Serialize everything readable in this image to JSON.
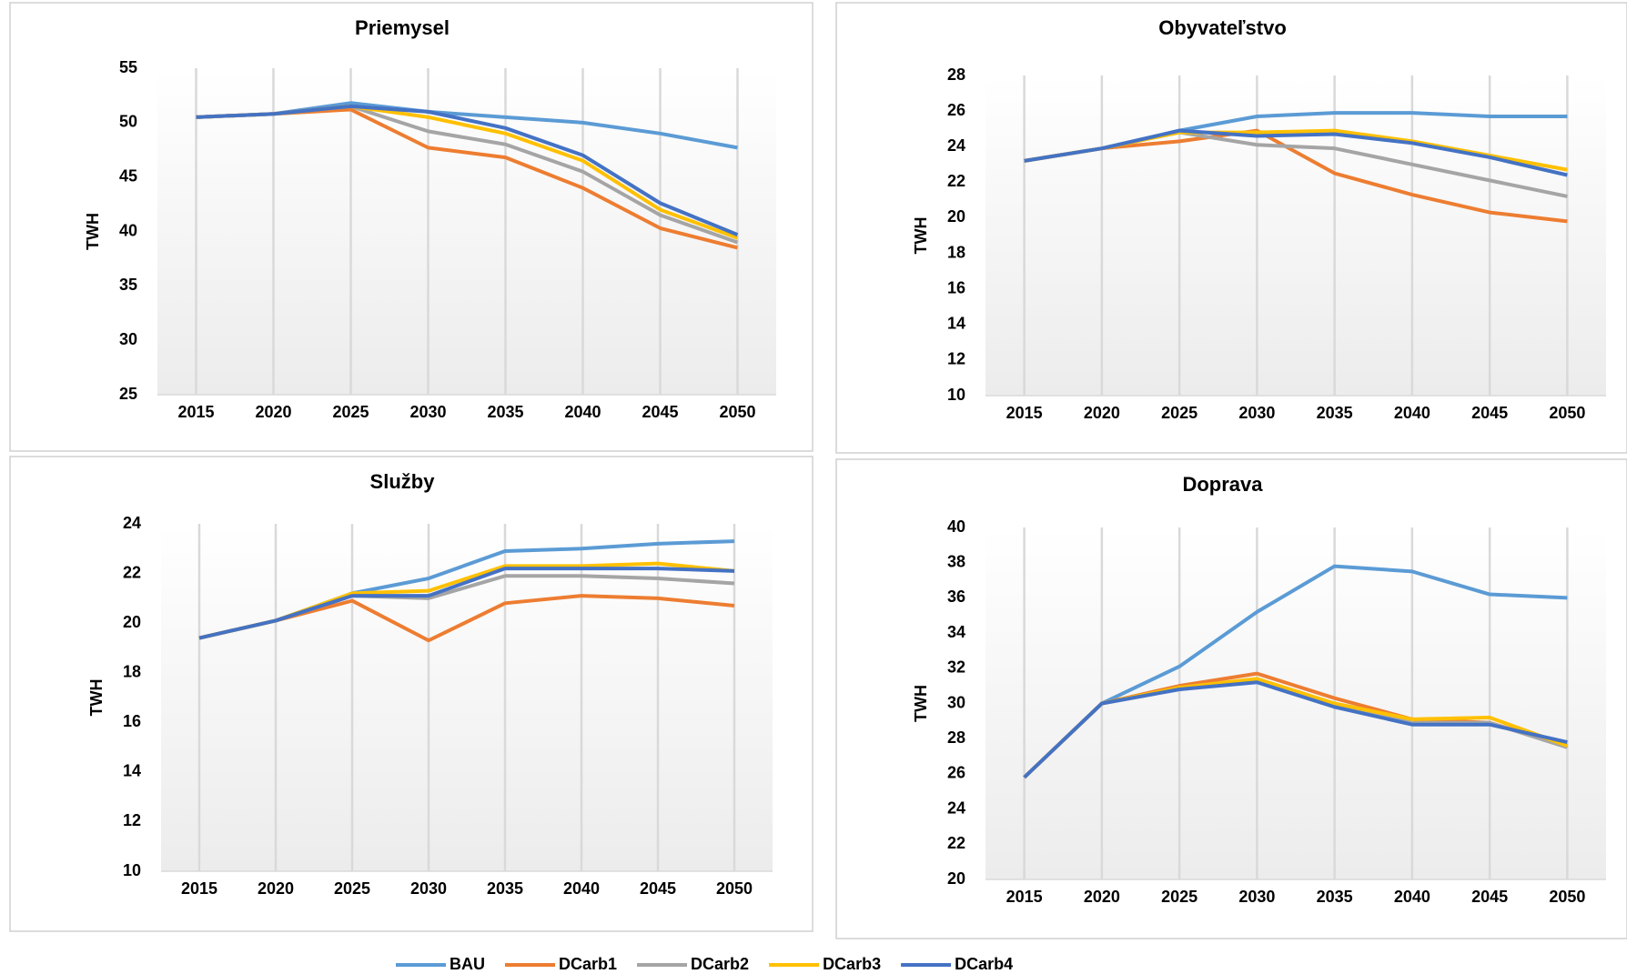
{
  "chart_data": [
    {
      "type": "line",
      "title": "Priemysel",
      "ylabel": "TWH",
      "categories": [
        "2015",
        "2020",
        "2025",
        "2030",
        "2035",
        "2040",
        "2045",
        "2050"
      ],
      "ylim": [
        25,
        55
      ],
      "yticks": [
        25,
        30,
        35,
        40,
        45,
        50,
        55
      ],
      "grid": true,
      "series": [
        {
          "name": "BAU",
          "color": "#5b9bd5",
          "values": [
            50.5,
            50.8,
            51.8,
            51.0,
            50.5,
            50.0,
            49.0,
            47.7
          ]
        },
        {
          "name": "DCarb1",
          "color": "#ed7d31",
          "values": [
            50.5,
            50.8,
            51.2,
            47.7,
            46.8,
            44.0,
            40.3,
            38.5
          ]
        },
        {
          "name": "DCarb2",
          "color": "#a5a5a5",
          "values": [
            50.5,
            50.8,
            51.5,
            49.2,
            48.0,
            45.5,
            41.5,
            39.0
          ]
        },
        {
          "name": "DCarb3",
          "color": "#ffc000",
          "values": [
            50.5,
            50.8,
            51.5,
            50.5,
            49.0,
            46.5,
            42.0,
            39.4
          ]
        },
        {
          "name": "DCarb4",
          "color": "#4472c4",
          "values": [
            50.5,
            50.8,
            51.5,
            51.0,
            49.5,
            47.0,
            42.6,
            39.7
          ]
        }
      ]
    },
    {
      "type": "line",
      "title": "Obyvateľstvo",
      "ylabel": "TWH",
      "categories": [
        "2015",
        "2020",
        "2025",
        "2030",
        "2035",
        "2040",
        "2045",
        "2050"
      ],
      "ylim": [
        10,
        28
      ],
      "yticks": [
        10,
        12,
        14,
        16,
        18,
        20,
        22,
        24,
        26,
        28
      ],
      "grid": true,
      "series": [
        {
          "name": "BAU",
          "color": "#5b9bd5",
          "values": [
            23.2,
            23.9,
            24.9,
            25.7,
            25.9,
            25.9,
            25.7,
            25.7
          ]
        },
        {
          "name": "DCarb1",
          "color": "#ed7d31",
          "values": [
            23.2,
            23.9,
            24.3,
            24.9,
            22.5,
            21.3,
            20.3,
            19.8
          ]
        },
        {
          "name": "DCarb2",
          "color": "#a5a5a5",
          "values": [
            23.2,
            23.9,
            24.8,
            24.1,
            23.9,
            23.0,
            22.1,
            21.2
          ]
        },
        {
          "name": "DCarb3",
          "color": "#ffc000",
          "values": [
            23.2,
            23.9,
            24.8,
            24.8,
            24.9,
            24.3,
            23.5,
            22.7
          ]
        },
        {
          "name": "DCarb4",
          "color": "#4472c4",
          "values": [
            23.2,
            23.9,
            24.9,
            24.6,
            24.7,
            24.2,
            23.4,
            22.4
          ]
        }
      ]
    },
    {
      "type": "line",
      "title": "Služby",
      "ylabel": "TWH",
      "categories": [
        "2015",
        "2020",
        "2025",
        "2030",
        "2035",
        "2040",
        "2045",
        "2050"
      ],
      "ylim": [
        10,
        24
      ],
      "yticks": [
        10,
        12,
        14,
        16,
        18,
        20,
        22,
        24
      ],
      "grid": true,
      "series": [
        {
          "name": "BAU",
          "color": "#5b9bd5",
          "values": [
            19.4,
            20.1,
            21.2,
            21.8,
            22.9,
            23.0,
            23.2,
            23.3
          ]
        },
        {
          "name": "DCarb1",
          "color": "#ed7d31",
          "values": [
            19.4,
            20.1,
            20.9,
            19.3,
            20.8,
            21.1,
            21.0,
            20.7
          ]
        },
        {
          "name": "DCarb2",
          "color": "#a5a5a5",
          "values": [
            19.4,
            20.1,
            21.1,
            21.0,
            21.9,
            21.9,
            21.8,
            21.6
          ]
        },
        {
          "name": "DCarb3",
          "color": "#ffc000",
          "values": [
            19.4,
            20.1,
            21.2,
            21.3,
            22.3,
            22.3,
            22.4,
            22.1
          ]
        },
        {
          "name": "DCarb4",
          "color": "#4472c4",
          "values": [
            19.4,
            20.1,
            21.1,
            21.1,
            22.2,
            22.2,
            22.2,
            22.1
          ]
        }
      ]
    },
    {
      "type": "line",
      "title": "Doprava",
      "ylabel": "TWH",
      "categories": [
        "2015",
        "2020",
        "2025",
        "2030",
        "2035",
        "2040",
        "2045",
        "2050"
      ],
      "ylim": [
        20,
        40
      ],
      "yticks": [
        20,
        22,
        24,
        26,
        28,
        30,
        32,
        34,
        36,
        38,
        40
      ],
      "grid": true,
      "series": [
        {
          "name": "BAU",
          "color": "#5b9bd5",
          "values": [
            25.8,
            30.0,
            32.1,
            35.2,
            37.8,
            37.5,
            36.2,
            36.0
          ]
        },
        {
          "name": "DCarb1",
          "color": "#ed7d31",
          "values": [
            25.8,
            30.0,
            31.0,
            31.7,
            30.3,
            29.1,
            28.9,
            27.6
          ]
        },
        {
          "name": "DCarb2",
          "color": "#a5a5a5",
          "values": [
            25.8,
            30.0,
            30.8,
            31.3,
            29.9,
            28.9,
            28.9,
            27.5
          ]
        },
        {
          "name": "DCarb3",
          "color": "#ffc000",
          "values": [
            25.8,
            30.0,
            30.9,
            31.4,
            30.0,
            29.1,
            29.2,
            27.6
          ]
        },
        {
          "name": "DCarb4",
          "color": "#4472c4",
          "values": [
            25.8,
            30.0,
            30.8,
            31.2,
            29.8,
            28.8,
            28.8,
            27.8
          ]
        }
      ]
    }
  ]
}
